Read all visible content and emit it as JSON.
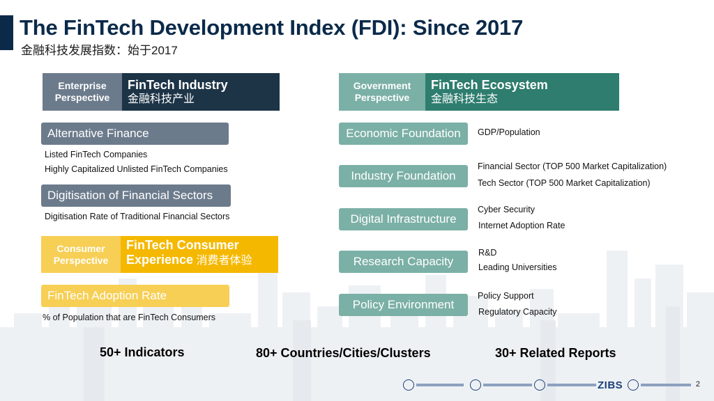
{
  "header": {
    "title": "The FinTech Development Index (FDI): Since 2017",
    "subtitle": "金融科技发展指数：始于2017"
  },
  "enterprise": {
    "perspective": "Enterprise\nPerspective",
    "pillar_en": "FinTech Industry",
    "pillar_cn": "金融科技产业",
    "sections": [
      {
        "label": "Alternative Finance",
        "notes": [
          "Listed FinTech Companies",
          "Highly Capitalized Unlisted FinTech Companies"
        ]
      },
      {
        "label": "Digitisation of Financial Sectors",
        "notes": [
          "Digitisation Rate of Traditional Financial Sectors"
        ]
      }
    ]
  },
  "consumer": {
    "perspective": "Consumer\nPerspective",
    "pillar_en1": "FinTech Consumer",
    "pillar_en2": "Experience",
    "pillar_cn": "消费者体验",
    "section_label": "FinTech Adoption Rate",
    "note": "% of Population that are FinTech Consumers"
  },
  "government": {
    "perspective": "Government\nPerspective",
    "pillar_en": "FinTech Ecosystem",
    "pillar_cn": "金融科技生态",
    "sections": [
      {
        "label": "Economic Foundation",
        "notes": [
          "GDP/Population"
        ]
      },
      {
        "label": "Industry Foundation",
        "notes": [
          "Financial Sector  (TOP 500 Market Capitalization)",
          "Tech Sector  (TOP 500 Market Capitalization)"
        ]
      },
      {
        "label": "Digital Infrastructure",
        "notes": [
          "Cyber Security",
          "Internet Adoption Rate"
        ]
      },
      {
        "label": "Research Capacity",
        "notes": [
          "R&D",
          "Leading Universities"
        ]
      },
      {
        "label": "Policy Environment",
        "notes": [
          "Policy Support",
          "Regulatory Capacity"
        ]
      }
    ]
  },
  "stats": [
    "50+ Indicators",
    "80+ Countries/Cities/Clusters",
    "30+ Related Reports"
  ],
  "footer": {
    "page_number": "2",
    "logo_zibs": "ZIBS"
  },
  "colors": {
    "navy": "#1d3447",
    "slate": "#6c7b8c",
    "teal_dark": "#2e7d6e",
    "teal_light": "#7bb0a6",
    "amber": "#f5b800",
    "amber_light": "#f7cf55"
  }
}
